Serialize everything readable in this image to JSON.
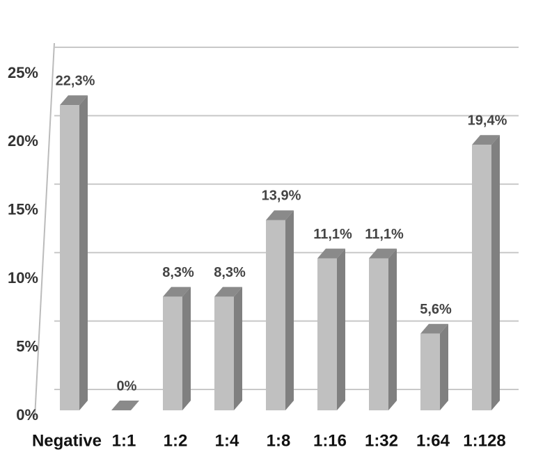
{
  "chart_data": {
    "type": "bar3d",
    "categories": [
      "Negative",
      "1:1",
      "1:2",
      "1:4",
      "1:8",
      "1:16",
      "1:32",
      "1:64",
      "1:128"
    ],
    "values": [
      22.3,
      0,
      8.3,
      8.3,
      13.9,
      11.1,
      11.1,
      5.6,
      19.4
    ],
    "value_labels": [
      "22,3%",
      "0%",
      "8,3%",
      "8,3%",
      "13,9%",
      "11,1%",
      "11,1%",
      "5,6%",
      "19,4%"
    ],
    "color": "#c0c0c0",
    "ylim": [
      0,
      25
    ],
    "yticks": [
      {
        "value": 0,
        "label": "0%"
      },
      {
        "value": 5,
        "label": "5%"
      },
      {
        "value": 10,
        "label": "10%"
      },
      {
        "value": 15,
        "label": "15%"
      },
      {
        "value": 20,
        "label": "20%"
      },
      {
        "value": 25,
        "label": "25%"
      }
    ],
    "grid": true
  }
}
